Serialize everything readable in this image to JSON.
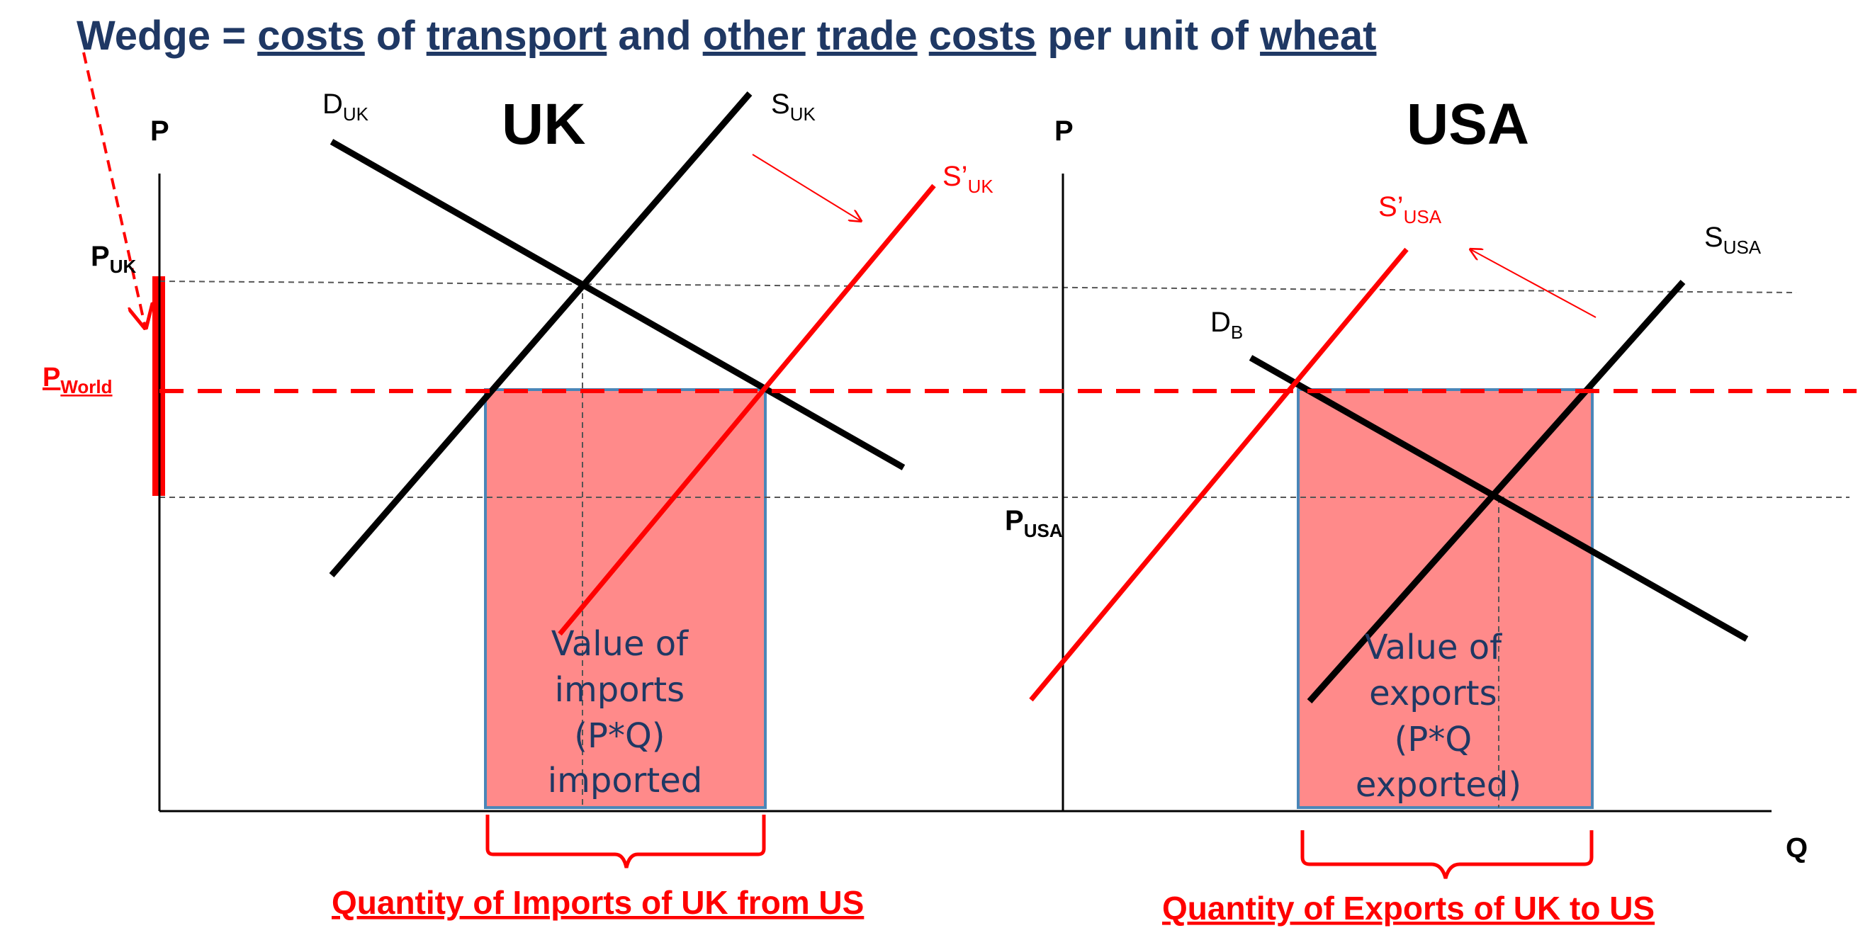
{
  "title": {
    "words": [
      "Wedge",
      "=",
      "costs",
      "of",
      "transport",
      "and",
      "other",
      "trade",
      "costs",
      "per",
      "unit",
      "of",
      "wheat"
    ]
  },
  "uk_panel": {
    "country_label": "UK",
    "y_axis_label": "P",
    "demand_label": {
      "main": "D",
      "sub": "UK"
    },
    "supply_label": {
      "main": "S",
      "sub": "UK"
    },
    "shifted_supply_label": {
      "main": "S’",
      "sub": "UK"
    },
    "price_label": {
      "main": "P",
      "sub": "UK"
    },
    "box_text": [
      "Value of",
      "imports",
      "(P*Q)",
      "imported"
    ]
  },
  "usa_panel": {
    "country_label": "USA",
    "y_axis_label": "P",
    "demand_label": {
      "main": "D",
      "sub": "B"
    },
    "supply_label": {
      "main": "S",
      "sub": "USA"
    },
    "shifted_supply_label": {
      "main": "S’",
      "sub": "USA"
    },
    "price_label": {
      "main": "P",
      "sub": "USA"
    },
    "box_text": [
      "Value of",
      "exports",
      "(P*Q",
      "exported)"
    ]
  },
  "world_price_label": {
    "main": "P",
    "sub": "World"
  },
  "x_axis_label": "Q",
  "bottom_labels": {
    "imports": "Quantity of Imports of UK from US",
    "exports": "Quantity of Exports of UK to US"
  },
  "colors": {
    "title": "#1f3864",
    "accent": "#ff0000",
    "box_fill": "#ff8a8a",
    "box_stroke": "#4a86b8",
    "curve": "#000000"
  }
}
